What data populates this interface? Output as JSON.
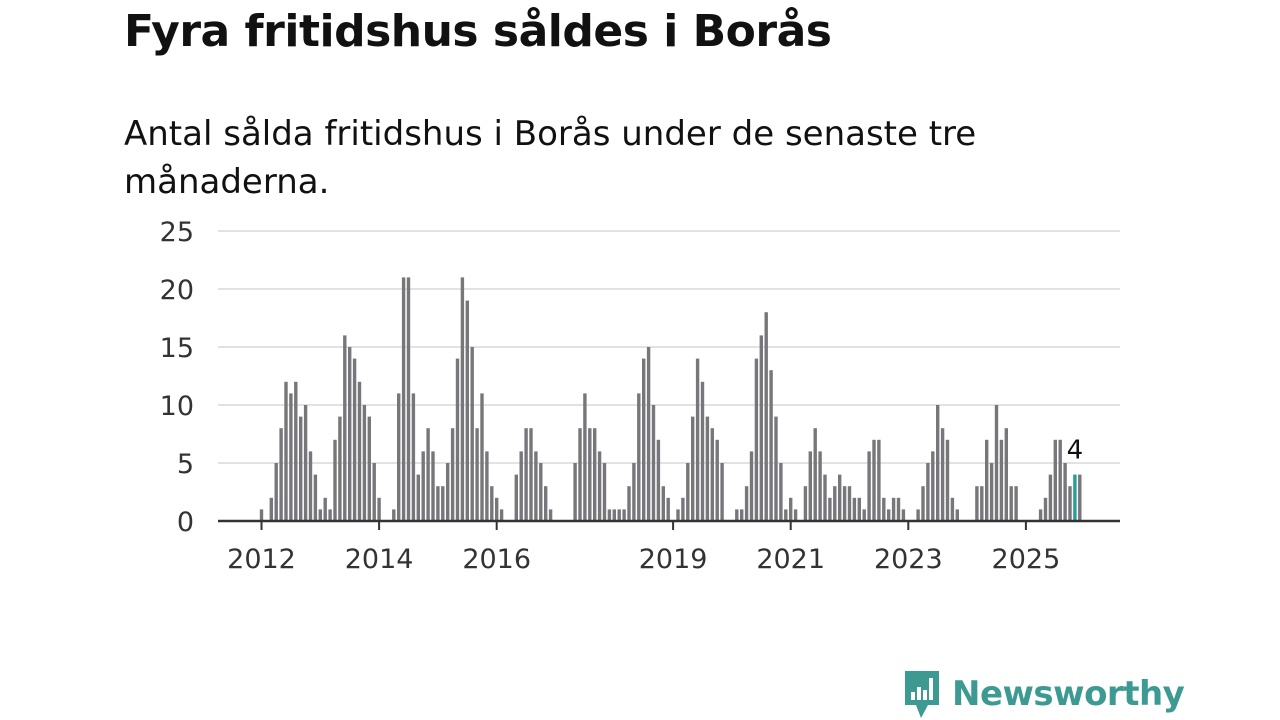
{
  "title": "Fyra fritidshus såldes i Borås",
  "subtitle": "Antal sålda fritidshus i Borås under de senaste tre månaderna.",
  "brand": {
    "name": "Newsworthy",
    "icon": "chart-bubble-icon",
    "color": "#3d9a92"
  },
  "chart_data": {
    "type": "bar",
    "ylim": [
      0,
      25
    ],
    "yticks": [
      0,
      5,
      10,
      15,
      20,
      25
    ],
    "x_tick_labels": [
      {
        "label": "2012",
        "index": 0
      },
      {
        "label": "2014",
        "index": 24
      },
      {
        "label": "2016",
        "index": 48
      },
      {
        "label": "2019",
        "index": 84
      },
      {
        "label": "2021",
        "index": 108
      },
      {
        "label": "2023",
        "index": 132
      },
      {
        "label": "2025",
        "index": 156
      }
    ],
    "first_period": "2012-01",
    "bar_color": "#77767b",
    "highlight_color": "#2a9d96",
    "highlight_index": 166,
    "annotation": {
      "text": "4",
      "index": 166
    },
    "grid": true,
    "values": [
      1,
      0,
      2,
      5,
      8,
      12,
      11,
      12,
      9,
      10,
      6,
      4,
      1,
      2,
      1,
      7,
      9,
      16,
      15,
      14,
      12,
      10,
      9,
      5,
      2,
      0,
      0,
      1,
      11,
      21,
      21,
      11,
      4,
      6,
      8,
      6,
      3,
      3,
      5,
      8,
      14,
      21,
      19,
      15,
      8,
      11,
      6,
      3,
      2,
      1,
      0,
      0,
      4,
      6,
      8,
      8,
      6,
      5,
      3,
      1,
      0,
      0,
      0,
      0,
      5,
      8,
      11,
      8,
      8,
      6,
      5,
      1,
      1,
      1,
      1,
      3,
      5,
      11,
      14,
      15,
      10,
      7,
      3,
      2,
      0,
      1,
      2,
      5,
      9,
      14,
      12,
      9,
      8,
      7,
      5,
      0,
      0,
      1,
      1,
      3,
      6,
      14,
      16,
      18,
      13,
      9,
      5,
      1,
      2,
      1,
      0,
      3,
      6,
      8,
      6,
      4,
      2,
      3,
      4,
      3,
      3,
      2,
      2,
      1,
      6,
      7,
      7,
      2,
      1,
      2,
      2,
      1,
      0,
      0,
      1,
      3,
      5,
      6,
      10,
      8,
      7,
      2,
      1,
      0,
      0,
      0,
      3,
      3,
      7,
      5,
      10,
      7,
      8,
      3,
      3,
      0,
      0,
      0,
      0,
      1,
      2,
      4,
      7,
      7,
      5,
      3,
      4,
      4
    ]
  }
}
